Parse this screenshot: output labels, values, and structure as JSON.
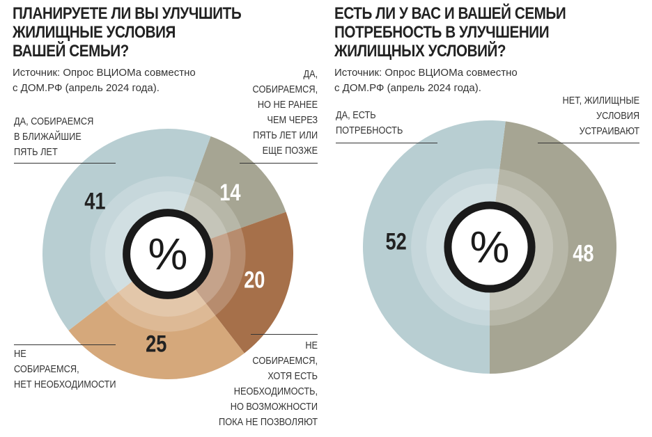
{
  "chart_data": [
    {
      "type": "pie",
      "title": "ПЛАНИРУЕТЕ ЛИ ВЫ УЛУЧШИТЬ\nЖИЛИЩНЫЕ УСЛОВИЯ\nВАШЕЙ СЕМЬИ?",
      "source": "Источник: Опрос ВЦИОМа совместно\nс ДОМ.РФ (апрель 2024 года).",
      "unit": "%",
      "slices": [
        {
          "label": "ДА,\nСОБИРАЕМСЯ,\nНО НЕ РАНЕЕ\nЧЕМ ЧЕРЕЗ\nПЯТЬ ЛЕТ ИЛИ\nЕЩЕ ПОЗЖЕ",
          "value": 14,
          "color": "#a6a593",
          "text_color": "#ffffff"
        },
        {
          "label": "НЕ\nСОБИРАЕМСЯ,\nХОТЯ ЕСТЬ\nНЕОБХОДИМОСТЬ,\nНО ВОЗМОЖНОСТИ\nПОКА НЕ ПОЗВОЛЯЮТ",
          "value": 20,
          "color": "#a6704a",
          "text_color": "#ffffff"
        },
        {
          "label": "НЕ\nСОБИРАЕМСЯ,\nНЕТ НЕОБХОДИМОСТИ",
          "value": 25,
          "color": "#d5a87b",
          "text_color": "#222222"
        },
        {
          "label": "ДА, СОБИРАЕМСЯ\nВ БЛИЖАЙШИЕ\nПЯТЬ ЛЕТ",
          "value": 41,
          "color": "#b8ced2",
          "text_color": "#222222"
        }
      ]
    },
    {
      "type": "pie",
      "title": "ЕСТЬ ЛИ У ВАС И ВАШЕЙ СЕМЬИ\nПОТРЕБНОСТЬ В УЛУЧШЕНИИ\nЖИЛИЩНЫХ УСЛОВИЙ?",
      "source": "Источник: Опрос ВЦИОМа совместно\nс ДОМ.РФ (апрель 2024 года).",
      "unit": "%",
      "slices": [
        {
          "label": "НЕТ, ЖИЛИЩНЫЕ\nУСЛОВИЯ\nУСТРАИВАЮТ",
          "value": 48,
          "color": "#a6a593",
          "text_color": "#ffffff"
        },
        {
          "label": "ДА, ЕСТЬ\nПОТРЕБНОСТЬ",
          "value": 52,
          "color": "#b8ced2",
          "text_color": "#222222"
        }
      ]
    }
  ]
}
